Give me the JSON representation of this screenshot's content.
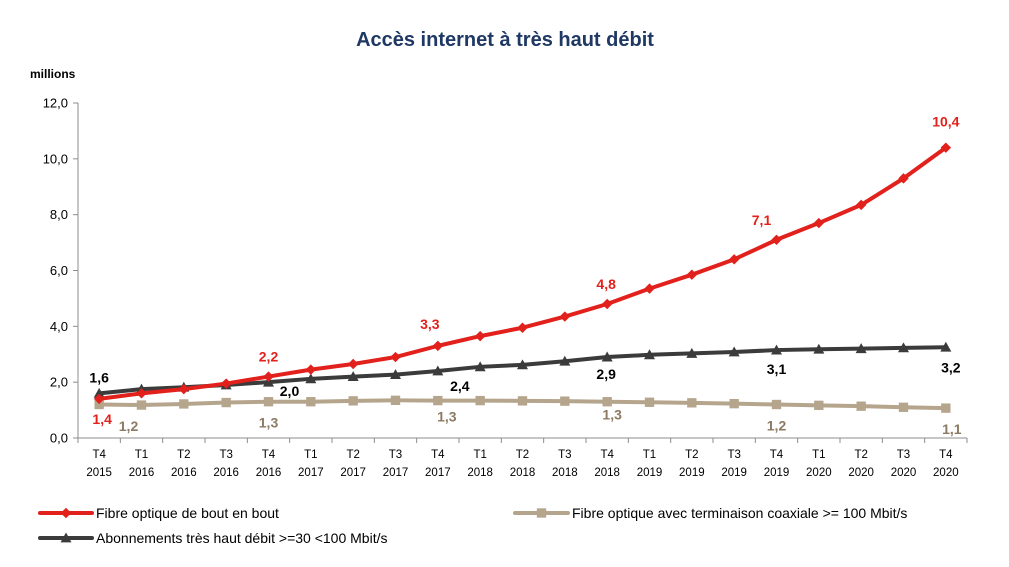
{
  "chart_data": {
    "type": "line",
    "title": "Accès internet à très haut débit",
    "ylabel": "millions",
    "xlabel": "",
    "ylim": [
      0,
      12
    ],
    "yticks": [
      "0,0",
      "2,0",
      "4,0",
      "6,0",
      "8,0",
      "10,0",
      "12,0"
    ],
    "ytick_values": [
      0,
      2,
      4,
      6,
      8,
      10,
      12
    ],
    "grid": false,
    "legend_position": "bottom",
    "categories": [
      [
        "T4",
        "2015"
      ],
      [
        "T1",
        "2016"
      ],
      [
        "T2",
        "2016"
      ],
      [
        "T3",
        "2016"
      ],
      [
        "T4",
        "2016"
      ],
      [
        "T1",
        "2017"
      ],
      [
        "T2",
        "2017"
      ],
      [
        "T3",
        "2017"
      ],
      [
        "T4",
        "2017"
      ],
      [
        "T1",
        "2018"
      ],
      [
        "T2",
        "2018"
      ],
      [
        "T3",
        "2018"
      ],
      [
        "T4",
        "2018"
      ],
      [
        "T1",
        "2019"
      ],
      [
        "T2",
        "2019"
      ],
      [
        "T3",
        "2019"
      ],
      [
        "T4",
        "2019"
      ],
      [
        "T1",
        "2020"
      ],
      [
        "T2",
        "2020"
      ],
      [
        "T3",
        "2020"
      ],
      [
        "T4",
        "2020"
      ]
    ],
    "series": [
      {
        "name": "Fibre optique de bout en bout",
        "color": "#e2211c",
        "marker": "diamond",
        "values": [
          1.4,
          1.6,
          1.75,
          1.95,
          2.2,
          2.45,
          2.65,
          2.9,
          3.3,
          3.65,
          3.95,
          4.35,
          4.8,
          5.35,
          5.85,
          6.4,
          7.1,
          7.7,
          8.35,
          9.3,
          10.4
        ],
        "labels": [
          {
            "index": 0,
            "text": "1,4"
          },
          {
            "index": 4,
            "text": "2,2"
          },
          {
            "index": 8,
            "text": "3,3"
          },
          {
            "index": 12,
            "text": "4,8"
          },
          {
            "index": 16,
            "text": "7,1"
          },
          {
            "index": 20,
            "text": "10,4"
          }
        ]
      },
      {
        "name": "Fibre optique avec terminaison coaxiale >= 100 Mbit/s",
        "color": "#b5a58d",
        "marker": "square",
        "values": [
          1.2,
          1.18,
          1.22,
          1.27,
          1.3,
          1.3,
          1.33,
          1.35,
          1.34,
          1.34,
          1.33,
          1.32,
          1.3,
          1.28,
          1.26,
          1.23,
          1.2,
          1.17,
          1.14,
          1.1,
          1.07
        ],
        "labels": [
          {
            "index": 1,
            "text": "1,2"
          },
          {
            "index": 4,
            "text": "1,3"
          },
          {
            "index": 8,
            "text": "1,3"
          },
          {
            "index": 12,
            "text": "1,3"
          },
          {
            "index": 16,
            "text": "1,2"
          },
          {
            "index": 20,
            "text": "1,1"
          }
        ]
      },
      {
        "name": "Abonnements très haut débit >=30 <100 Mbit/s",
        "color": "#3b3b3b",
        "marker": "triangle",
        "values": [
          1.6,
          1.75,
          1.82,
          1.9,
          2.0,
          2.12,
          2.2,
          2.27,
          2.4,
          2.55,
          2.62,
          2.75,
          2.9,
          2.98,
          3.03,
          3.08,
          3.15,
          3.18,
          3.2,
          3.23,
          3.25
        ],
        "labels": [
          {
            "index": 0,
            "text": "1,6"
          },
          {
            "index": 4,
            "text": "2,0"
          },
          {
            "index": 8,
            "text": "2,4"
          },
          {
            "index": 12,
            "text": "2,9"
          },
          {
            "index": 16,
            "text": "3,1"
          },
          {
            "index": 20,
            "text": "3,2"
          }
        ]
      }
    ]
  }
}
